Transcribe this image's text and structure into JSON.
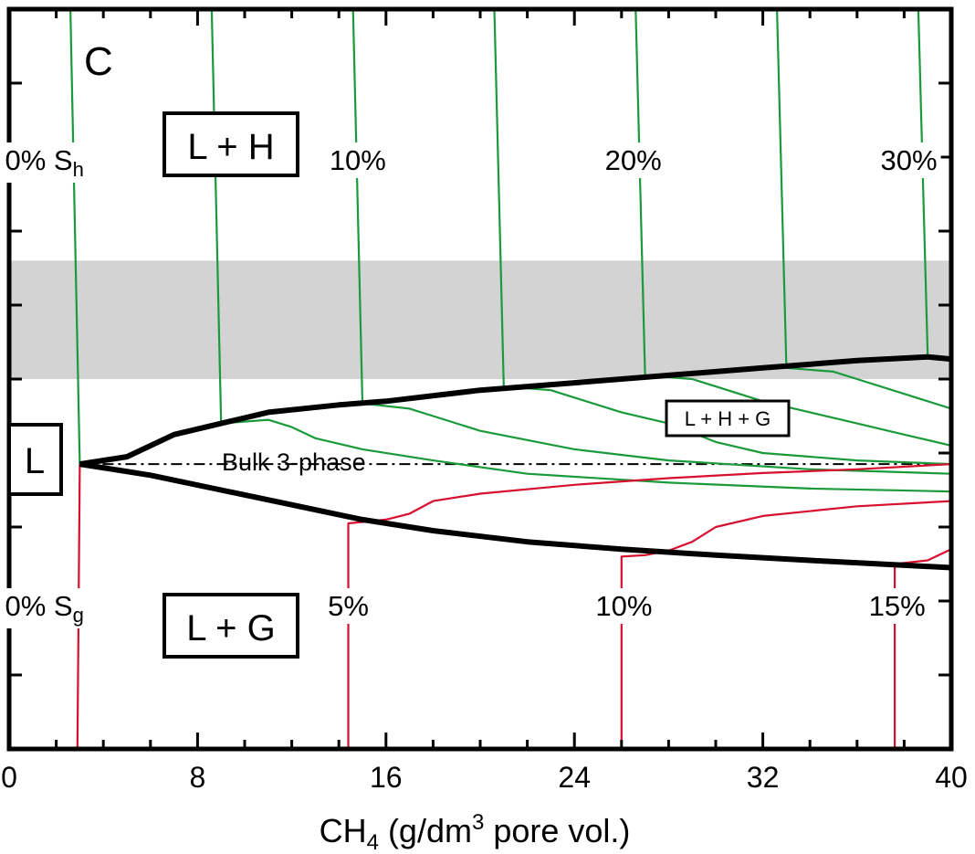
{
  "panel_label": "C",
  "x_axis": {
    "label_prefix": "CH",
    "label_sub": "4",
    "label_mid": " (g/dm",
    "label_sup": "3",
    "label_suffix": " pore vol.)"
  },
  "regions": {
    "lh": "L + H",
    "lg": "L + G",
    "l": "L",
    "lhg": "L + H + G"
  },
  "bulk_label": "Bulk 3-phase",
  "colors": {
    "hydrate_lines": "#1a9a3a",
    "gas_lines": "#d6102e",
    "boundary": "#000000",
    "band": "#d3d3d3"
  },
  "chart_data": {
    "type": "line",
    "xlim": [
      0,
      40
    ],
    "ylim": [
      0,
      1
    ],
    "x_ticks": [
      0,
      8,
      16,
      24,
      32,
      40
    ],
    "y_tick_count": 10,
    "y_tick_labels_shown": false,
    "grid": false,
    "shaded_band": {
      "y_from": 0.5,
      "y_to": 0.66
    },
    "bulk_3phase_y": 0.385,
    "hydrate_saturation_labels": [
      {
        "text": "0% S",
        "sub": "h",
        "x": 1.5
      },
      {
        "text": "10%",
        "x": 14.8
      },
      {
        "text": "20%",
        "x": 26.5
      },
      {
        "text": "30%",
        "x": 38.2
      }
    ],
    "gas_saturation_labels": [
      {
        "text": "0% S",
        "sub": "g",
        "x": 1.5
      },
      {
        "text": "5%",
        "x": 14.4
      },
      {
        "text": "10%",
        "x": 26.1
      },
      {
        "text": "15%",
        "x": 37.7
      }
    ],
    "series": [
      {
        "role": "boundary-upper",
        "points": [
          [
            3.0,
            0.385
          ],
          [
            5.0,
            0.395
          ],
          [
            7.0,
            0.425
          ],
          [
            9.0,
            0.44
          ],
          [
            11.0,
            0.455
          ],
          [
            14.0,
            0.465
          ],
          [
            16.0,
            0.47
          ],
          [
            20.0,
            0.485
          ],
          [
            24.0,
            0.495
          ],
          [
            28.0,
            0.505
          ],
          [
            32.0,
            0.515
          ],
          [
            36.0,
            0.525
          ],
          [
            39.0,
            0.53
          ],
          [
            40.0,
            0.527
          ]
        ]
      },
      {
        "role": "boundary-lower",
        "points": [
          [
            3.0,
            0.385
          ],
          [
            6.0,
            0.37
          ],
          [
            9.0,
            0.35
          ],
          [
            12.0,
            0.33
          ],
          [
            15.0,
            0.31
          ],
          [
            18.0,
            0.295
          ],
          [
            22.0,
            0.28
          ],
          [
            26.0,
            0.27
          ],
          [
            30.0,
            0.262
          ],
          [
            34.0,
            0.255
          ],
          [
            37.0,
            0.25
          ],
          [
            40.0,
            0.245
          ]
        ]
      },
      {
        "role": "hydrate-isoline",
        "points": [
          [
            2.6,
            1.0
          ],
          [
            3.0,
            0.385
          ]
        ]
      },
      {
        "role": "hydrate-isoline",
        "points": [
          [
            8.6,
            1.0
          ],
          [
            9.0,
            0.44
          ],
          [
            11.0,
            0.445
          ],
          [
            12.0,
            0.435
          ],
          [
            13.0,
            0.42
          ],
          [
            15.0,
            0.405
          ],
          [
            18.0,
            0.39
          ],
          [
            22.0,
            0.372
          ],
          [
            28.0,
            0.36
          ],
          [
            34.0,
            0.352
          ],
          [
            40.0,
            0.348
          ]
        ]
      },
      {
        "role": "hydrate-isoline",
        "points": [
          [
            14.6,
            1.0
          ],
          [
            15.0,
            0.467
          ],
          [
            17.0,
            0.46
          ],
          [
            18.0,
            0.45
          ],
          [
            20.0,
            0.43
          ],
          [
            24.0,
            0.405
          ],
          [
            28.0,
            0.39
          ],
          [
            34.0,
            0.378
          ],
          [
            40.0,
            0.372
          ]
        ]
      },
      {
        "role": "hydrate-isoline",
        "points": [
          [
            20.6,
            1.0
          ],
          [
            21.0,
            0.49
          ],
          [
            23.0,
            0.485
          ],
          [
            24.0,
            0.475
          ],
          [
            26.0,
            0.455
          ],
          [
            28.0,
            0.44
          ],
          [
            30.0,
            0.415
          ],
          [
            32.0,
            0.4
          ],
          [
            36.0,
            0.39
          ],
          [
            40.0,
            0.385
          ]
        ]
      },
      {
        "role": "hydrate-isoline",
        "points": [
          [
            26.6,
            1.0
          ],
          [
            27.0,
            0.505
          ],
          [
            29.0,
            0.5
          ],
          [
            30.0,
            0.49
          ],
          [
            32.0,
            0.47
          ],
          [
            34.0,
            0.455
          ],
          [
            36.0,
            0.44
          ],
          [
            38.0,
            0.425
          ],
          [
            40.0,
            0.41
          ]
        ]
      },
      {
        "role": "hydrate-isoline",
        "points": [
          [
            32.6,
            1.0
          ],
          [
            33.0,
            0.515
          ],
          [
            35.0,
            0.51
          ],
          [
            36.0,
            0.5
          ],
          [
            38.0,
            0.48
          ],
          [
            40.0,
            0.46
          ]
        ]
      },
      {
        "role": "hydrate-isoline",
        "points": [
          [
            38.6,
            1.0
          ],
          [
            39.0,
            0.53
          ]
        ]
      },
      {
        "role": "gas-isoline",
        "points": [
          [
            2.9,
            0.0
          ],
          [
            3.0,
            0.385
          ]
        ]
      },
      {
        "role": "gas-isoline",
        "points": [
          [
            14.4,
            0.0
          ],
          [
            14.4,
            0.305
          ],
          [
            16.0,
            0.31
          ],
          [
            17.0,
            0.318
          ],
          [
            18.0,
            0.335
          ],
          [
            20.0,
            0.345
          ],
          [
            24.0,
            0.357
          ],
          [
            28.0,
            0.366
          ],
          [
            32.0,
            0.373
          ],
          [
            36.0,
            0.378
          ],
          [
            40.0,
            0.385
          ]
        ]
      },
      {
        "role": "gas-isoline",
        "points": [
          [
            26.0,
            0.0
          ],
          [
            26.0,
            0.26
          ],
          [
            27.0,
            0.262
          ],
          [
            28.0,
            0.268
          ],
          [
            29.0,
            0.28
          ],
          [
            30.0,
            0.3
          ],
          [
            32.0,
            0.315
          ],
          [
            36.0,
            0.328
          ],
          [
            40.0,
            0.335
          ]
        ]
      },
      {
        "role": "gas-isoline",
        "points": [
          [
            37.6,
            0.0
          ],
          [
            37.6,
            0.25
          ],
          [
            39.0,
            0.255
          ],
          [
            40.0,
            0.27
          ]
        ]
      }
    ]
  }
}
